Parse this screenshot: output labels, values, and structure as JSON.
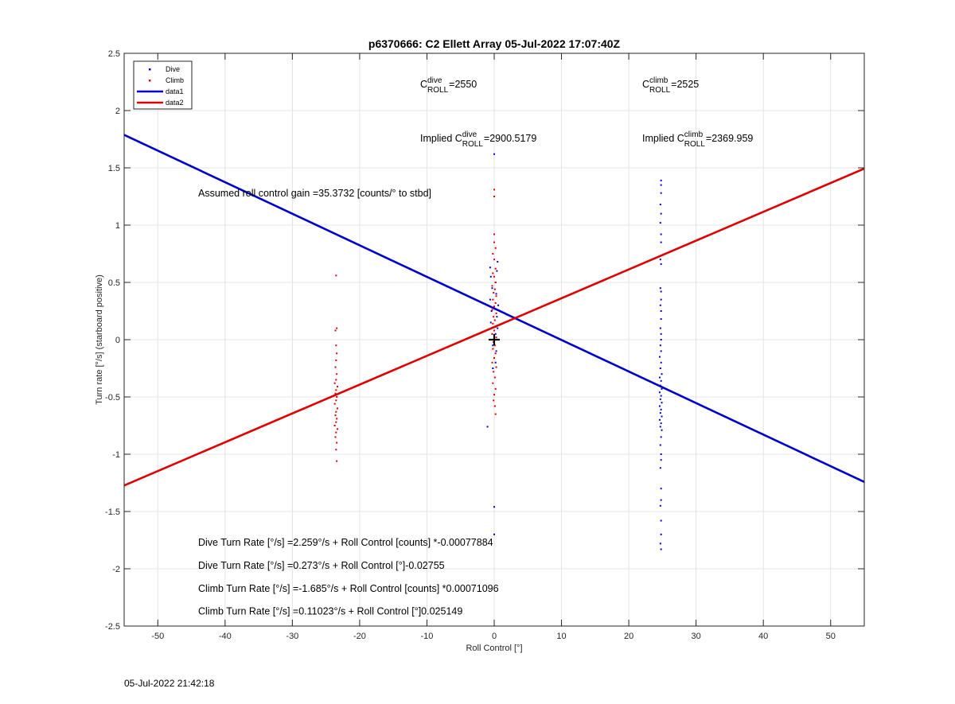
{
  "footer_timestamp": "05-Jul-2022 21:42:18",
  "colors": {
    "dive": "#0000cc",
    "climb": "#dd0000"
  },
  "chart_data": {
    "type": "scatter",
    "title": "p6370666: C2 Ellett Array 05-Jul-2022 17:07:40Z",
    "xlabel": "Roll Control [°]",
    "ylabel": "Turn rate [°/s] (starboard positive)",
    "xlim": [
      -55,
      55
    ],
    "ylim": [
      -2.5,
      2.5
    ],
    "xticks": [
      -50,
      -40,
      -30,
      -20,
      -10,
      0,
      10,
      20,
      30,
      40,
      50
    ],
    "yticks": [
      -2.5,
      -2,
      -1.5,
      -1,
      -0.5,
      0,
      0.5,
      1,
      1.5,
      2,
      2.5
    ],
    "grid": true,
    "legend": {
      "placement": "top-left",
      "entries": [
        {
          "label": "Dive",
          "kind": "marker",
          "color": "#0000cc"
        },
        {
          "label": "Climb",
          "kind": "marker",
          "color": "#dd0000"
        },
        {
          "label": "data1",
          "kind": "line",
          "color": "#0000cc"
        },
        {
          "label": "data2",
          "kind": "line",
          "color": "#dd0000"
        }
      ]
    },
    "series": [
      {
        "name": "Dive",
        "color": "#0000cc",
        "points": [
          [
            -1.0,
            -0.76
          ],
          [
            0,
            1.62
          ],
          [
            0,
            -1.46
          ],
          [
            0,
            -1.7
          ],
          [
            -0.6,
            0.63
          ],
          [
            -0.5,
            0.55
          ],
          [
            -0.3,
            0.45
          ],
          [
            -0.6,
            0.35
          ],
          [
            -0.4,
            0.25
          ],
          [
            -0.5,
            0.15
          ],
          [
            -0.3,
            0.05
          ],
          [
            -0.2,
            -0.05
          ],
          [
            0.2,
            0.5
          ],
          [
            0.3,
            0.4
          ],
          [
            0.4,
            0.2
          ],
          [
            0.5,
            0.1
          ],
          [
            0.6,
            0.3
          ],
          [
            0.4,
            0.6
          ],
          [
            0.2,
            0.05
          ],
          [
            0.3,
            -0.1
          ],
          [
            0.2,
            -0.2
          ],
          [
            -0.2,
            -0.25
          ],
          [
            0.5,
            0.68
          ],
          [
            24.8,
            1.39
          ],
          [
            24.8,
            1.35
          ],
          [
            24.8,
            1.28
          ],
          [
            24.7,
            1.18
          ],
          [
            24.8,
            1.1
          ],
          [
            24.7,
            1.02
          ],
          [
            24.8,
            0.92
          ],
          [
            24.8,
            0.85
          ],
          [
            24.7,
            0.7
          ],
          [
            24.8,
            0.66
          ],
          [
            24.7,
            0.45
          ],
          [
            24.8,
            0.42
          ],
          [
            24.8,
            0.35
          ],
          [
            24.7,
            0.3
          ],
          [
            24.8,
            0.25
          ],
          [
            24.8,
            0.18
          ],
          [
            24.7,
            0.1
          ],
          [
            24.8,
            0.05
          ],
          [
            24.8,
            0.0
          ],
          [
            24.7,
            -0.05
          ],
          [
            24.8,
            -0.1
          ],
          [
            24.6,
            -0.15
          ],
          [
            24.8,
            -0.2
          ],
          [
            24.7,
            -0.25
          ],
          [
            24.9,
            -0.3
          ],
          [
            24.6,
            -0.33
          ],
          [
            24.8,
            -0.36
          ],
          [
            24.7,
            -0.4
          ],
          [
            24.9,
            -0.43
          ],
          [
            24.6,
            -0.46
          ],
          [
            24.8,
            -0.49
          ],
          [
            24.7,
            -0.52
          ],
          [
            24.9,
            -0.55
          ],
          [
            24.6,
            -0.58
          ],
          [
            24.8,
            -0.61
          ],
          [
            24.7,
            -0.64
          ],
          [
            24.9,
            -0.67
          ],
          [
            24.6,
            -0.7
          ],
          [
            24.8,
            -0.73
          ],
          [
            24.7,
            -0.76
          ],
          [
            24.9,
            -0.79
          ],
          [
            24.8,
            -0.85
          ],
          [
            24.7,
            -0.92
          ],
          [
            24.8,
            -1.0
          ],
          [
            24.8,
            -1.05
          ],
          [
            24.7,
            -1.12
          ],
          [
            24.8,
            -1.3
          ],
          [
            24.8,
            -1.4
          ],
          [
            24.7,
            -1.45
          ],
          [
            24.8,
            -1.58
          ],
          [
            24.8,
            -1.7
          ],
          [
            24.7,
            -1.78
          ],
          [
            24.8,
            -1.83
          ]
        ]
      },
      {
        "name": "Climb",
        "color": "#dd0000",
        "points": [
          [
            0,
            1.31
          ],
          [
            0,
            1.25
          ],
          [
            0,
            0.92
          ],
          [
            0,
            0.85
          ],
          [
            0.2,
            0.8
          ],
          [
            -0.2,
            0.75
          ],
          [
            0,
            0.7
          ],
          [
            0.2,
            0.62
          ],
          [
            -0.2,
            0.58
          ],
          [
            0,
            0.55
          ],
          [
            0.2,
            0.5
          ],
          [
            -0.3,
            0.47
          ],
          [
            0.1,
            0.44
          ],
          [
            -0.1,
            0.41
          ],
          [
            0.3,
            0.38
          ],
          [
            -0.2,
            0.35
          ],
          [
            0.2,
            0.32
          ],
          [
            0,
            0.29
          ],
          [
            -0.3,
            0.26
          ],
          [
            0.3,
            0.23
          ],
          [
            -0.1,
            0.2
          ],
          [
            0.1,
            0.17
          ],
          [
            -0.2,
            0.14
          ],
          [
            0.2,
            0.11
          ],
          [
            0,
            0.08
          ],
          [
            -0.3,
            0.05
          ],
          [
            0.3,
            0.02
          ],
          [
            -0.1,
            -0.02
          ],
          [
            0.1,
            -0.05
          ],
          [
            -0.2,
            -0.08
          ],
          [
            0.2,
            -0.12
          ],
          [
            0,
            -0.16
          ],
          [
            -0.3,
            -0.2
          ],
          [
            0.3,
            -0.24
          ],
          [
            -0.1,
            -0.28
          ],
          [
            0.1,
            -0.33
          ],
          [
            -0.2,
            -0.38
          ],
          [
            0.2,
            -0.43
          ],
          [
            0,
            -0.48
          ],
          [
            -0.1,
            -0.53
          ],
          [
            0.1,
            -0.58
          ],
          [
            0.2,
            -0.65
          ],
          [
            -23.5,
            0.56
          ],
          [
            -23.4,
            0.1
          ],
          [
            -23.6,
            0.08
          ],
          [
            -23.5,
            -0.05
          ],
          [
            -23.4,
            -0.12
          ],
          [
            -23.5,
            -0.18
          ],
          [
            -23.6,
            -0.24
          ],
          [
            -23.4,
            -0.3
          ],
          [
            -23.5,
            -0.35
          ],
          [
            -23.7,
            -0.38
          ],
          [
            -23.3,
            -0.41
          ],
          [
            -23.5,
            -0.44
          ],
          [
            -23.6,
            -0.47
          ],
          [
            -23.4,
            -0.5
          ],
          [
            -23.5,
            -0.53
          ],
          [
            -23.7,
            -0.56
          ],
          [
            -23.3,
            -0.6
          ],
          [
            -23.5,
            -0.63
          ],
          [
            -23.6,
            -0.66
          ],
          [
            -23.4,
            -0.69
          ],
          [
            -23.5,
            -0.72
          ],
          [
            -23.7,
            -0.75
          ],
          [
            -23.3,
            -0.78
          ],
          [
            -23.5,
            -0.81
          ],
          [
            -23.6,
            -0.85
          ],
          [
            -23.4,
            -0.9
          ],
          [
            -23.5,
            -0.96
          ],
          [
            -23.4,
            -1.06
          ]
        ]
      }
    ],
    "fit_lines": [
      {
        "name": "data1",
        "color": "#0000cc",
        "x": [
          -55,
          55
        ],
        "y": [
          1.788,
          -1.242
        ]
      },
      {
        "name": "data2",
        "color": "#dd0000",
        "x": [
          -55,
          55
        ],
        "y": [
          -1.2726,
          1.4931
        ]
      }
    ],
    "annotations": [
      {
        "id": "cdive",
        "prefix": "C",
        "sup": "dive",
        "sub": "ROLL",
        "suffix": "=2550",
        "x": -11,
        "y": 2.2
      },
      {
        "id": "cclimb",
        "prefix": "C",
        "sup": "climb",
        "sub": "ROLL",
        "suffix": "=2525",
        "x": 22,
        "y": 2.2
      },
      {
        "id": "implied-dive",
        "prefix": "Implied C",
        "sup": "dive",
        "sub": "ROLL",
        "suffix": "=2900.5179",
        "x": -11,
        "y": 1.73
      },
      {
        "id": "implied-climb",
        "prefix": "Implied C",
        "sup": "climb",
        "sub": "ROLL",
        "suffix": "=2369.959",
        "x": 22,
        "y": 1.73
      },
      {
        "id": "gain",
        "text": "Assumed roll control gain =35.3732 [counts/° to stbd]",
        "x": -44,
        "y": 1.25
      },
      {
        "id": "eq1",
        "text": "Dive Turn Rate [°/s] =2.259°/s + Roll Control [counts] *-0.00077884",
        "x": -44,
        "y": -1.8
      },
      {
        "id": "eq2",
        "text": "Dive Turn Rate [°/s] =0.273°/s + Roll Control [°]-0.02755",
        "x": -44,
        "y": -2.0
      },
      {
        "id": "eq3",
        "text": "Climb Turn Rate [°/s] =-1.685°/s + Roll Control [counts] *0.00071096",
        "x": -44,
        "y": -2.2
      },
      {
        "id": "eq4",
        "text": "Climb Turn Rate [°/s] =0.11023°/s + Roll Control [°]0.025149",
        "x": -44,
        "y": -2.4
      }
    ],
    "marker_cross": {
      "x": 0,
      "y": 0
    }
  }
}
